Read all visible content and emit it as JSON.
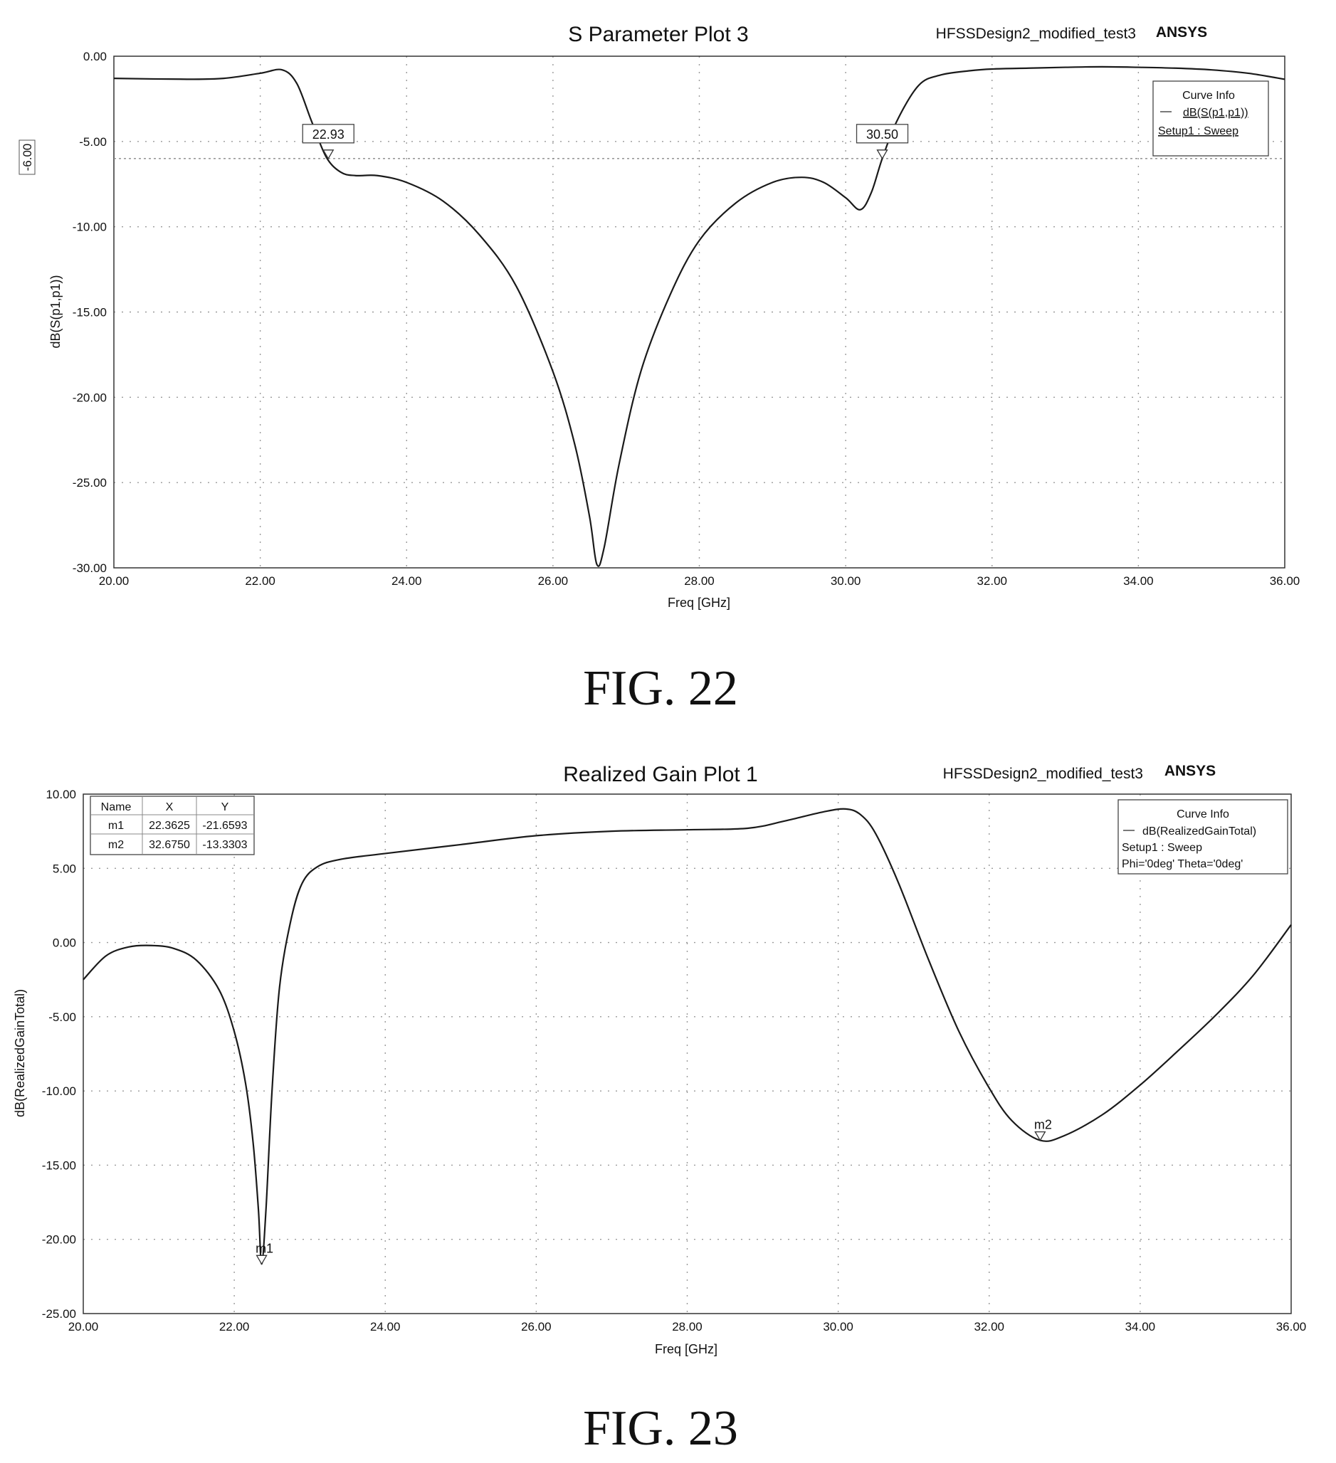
{
  "figures": [
    {
      "caption": "FIG. 22",
      "design_name": "HFSSDesign2_modified_test3",
      "brand": "ANSYS",
      "legend": {
        "title": "Curve Info",
        "lines": [
          "dB(S(p1,p1))",
          "Setup1 : Sweep"
        ]
      },
      "ref_line_label": "-6.00",
      "marker_labels": [
        "22.93",
        "30.50"
      ]
    },
    {
      "caption": "FIG. 23",
      "design_name": "HFSSDesign2_modified_test3",
      "brand": "ANSYS",
      "legend": {
        "title": "Curve Info",
        "lines": [
          "dB(RealizedGainTotal)",
          "Setup1 : Sweep",
          "Phi='0deg' Theta='0deg'"
        ]
      },
      "marker_table": {
        "headers": [
          "Name",
          "X",
          "Y"
        ],
        "rows": [
          [
            "m1",
            "22.3625",
            "-21.6593"
          ],
          [
            "m2",
            "32.6750",
            "-13.3303"
          ]
        ]
      },
      "marker_labels": [
        "m1",
        "m2"
      ]
    }
  ],
  "chart_data": [
    {
      "type": "line",
      "title": "S Parameter Plot 3",
      "xlabel": "Freq [GHz]",
      "ylabel": "dB(S(p1,p1))",
      "xlim": [
        20,
        36
      ],
      "ylim": [
        -30,
        0
      ],
      "xticks": [
        "20.00",
        "22.00",
        "24.00",
        "26.00",
        "28.00",
        "30.00",
        "32.00",
        "34.00",
        "36.00"
      ],
      "yticks": [
        "0.00",
        "-5.00",
        "-10.00",
        "-15.00",
        "-20.00",
        "-25.00",
        "-30.00"
      ],
      "grid": true,
      "legend_position": "top-right",
      "reference_line_y": -6,
      "markers": [
        {
          "x": 22.93,
          "y": -6
        },
        {
          "x": 30.5,
          "y": -6
        }
      ],
      "series": [
        {
          "name": "dB(S(p1,p1))",
          "x": [
            20,
            21,
            21.5,
            22,
            22.3,
            22.5,
            22.7,
            22.9,
            23.1,
            23.3,
            23.6,
            24,
            24.5,
            25,
            25.5,
            26,
            26.3,
            26.5,
            26.6,
            26.7,
            26.9,
            27.2,
            27.6,
            28,
            28.5,
            29,
            29.4,
            29.7,
            30,
            30.2,
            30.35,
            30.5,
            30.7,
            31,
            31.3,
            31.7,
            32,
            32.5,
            33,
            33.5,
            34,
            34.5,
            35,
            35.5,
            36
          ],
          "y": [
            -1.3,
            -1.35,
            -1.3,
            -1.0,
            -0.8,
            -1.6,
            -3.8,
            -5.9,
            -6.8,
            -7.0,
            -7.0,
            -7.4,
            -8.5,
            -10.5,
            -13.5,
            -18.5,
            -22.8,
            -27.0,
            -29.8,
            -28.8,
            -24.0,
            -18.5,
            -14.0,
            -10.8,
            -8.6,
            -7.4,
            -7.1,
            -7.4,
            -8.3,
            -9.0,
            -8.0,
            -6.0,
            -3.8,
            -1.7,
            -1.1,
            -0.85,
            -0.75,
            -0.7,
            -0.65,
            -0.62,
            -0.65,
            -0.7,
            -0.8,
            -1.0,
            -1.35
          ]
        }
      ]
    },
    {
      "type": "line",
      "title": "Realized Gain Plot 1",
      "xlabel": "Freq [GHz]",
      "ylabel": "dB(RealizedGainTotal)",
      "xlim": [
        20,
        36
      ],
      "ylim": [
        -25,
        10
      ],
      "xticks": [
        "20.00",
        "22.00",
        "24.00",
        "26.00",
        "28.00",
        "30.00",
        "32.00",
        "34.00",
        "36.00"
      ],
      "yticks": [
        "10.00",
        "5.00",
        "0.00",
        "-5.00",
        "-10.00",
        "-15.00",
        "-20.00",
        "-25.00"
      ],
      "grid": true,
      "legend_position": "top-right",
      "markers": [
        {
          "name": "m1",
          "x": 22.3625,
          "y": -21.6593
        },
        {
          "name": "m2",
          "x": 32.675,
          "y": -13.3303
        }
      ],
      "series": [
        {
          "name": "dB(RealizedGainTotal)",
          "x": [
            20,
            20.3,
            20.6,
            20.9,
            21.2,
            21.5,
            21.8,
            22.0,
            22.15,
            22.25,
            22.32,
            22.3625,
            22.42,
            22.5,
            22.6,
            22.75,
            22.9,
            23.1,
            23.4,
            24,
            25,
            26,
            27,
            28,
            28.8,
            29.3,
            29.8,
            30.1,
            30.3,
            30.5,
            30.8,
            31.2,
            31.6,
            32.0,
            32.3,
            32.675,
            33.0,
            33.5,
            34,
            34.5,
            35,
            35.5,
            36
          ],
          "y": [
            -2.5,
            -0.9,
            -0.3,
            -0.2,
            -0.4,
            -1.2,
            -3.2,
            -6.0,
            -9.5,
            -13.5,
            -18.0,
            -21.6593,
            -18.0,
            -10.0,
            -3.0,
            1.5,
            4.0,
            5.1,
            5.6,
            6.0,
            6.6,
            7.2,
            7.5,
            7.6,
            7.7,
            8.2,
            8.8,
            9.0,
            8.6,
            7.3,
            4.0,
            -1.2,
            -6.0,
            -9.8,
            -12.0,
            -13.3303,
            -13.0,
            -11.6,
            -9.6,
            -7.3,
            -4.9,
            -2.2,
            1.2
          ]
        }
      ]
    }
  ]
}
